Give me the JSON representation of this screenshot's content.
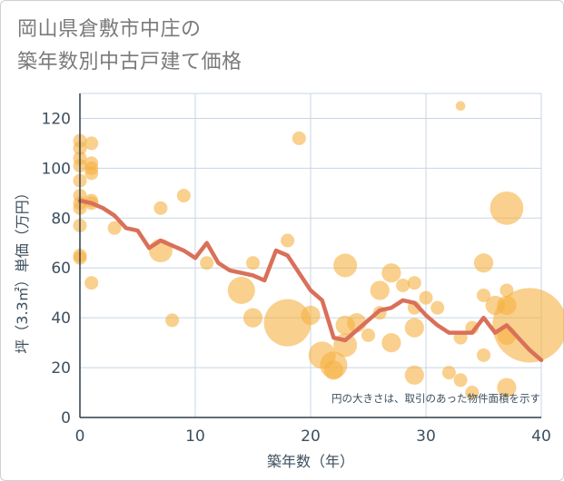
{
  "page": {
    "title_line1": "岡山県倉敷市中庄の",
    "title_line2": "築年数別中古戸建て価格"
  },
  "chart_data": {
    "type": "scatter",
    "title": "岡山県倉敷市中庄の築年数別中古戸建て価格",
    "xlabel": "築年数（年）",
    "ylabel": "坪（3.3㎡）単価（万円）",
    "xlim": [
      0,
      40
    ],
    "ylim": [
      0,
      130
    ],
    "xticks": [
      0,
      10,
      20,
      30,
      40
    ],
    "yticks": [
      0,
      20,
      40,
      60,
      80,
      100,
      120
    ],
    "grid": true,
    "note": "円の大きさは、取引のあった物件面積を示す",
    "colors": {
      "bubble": "#f5b041",
      "trend": "#d9705a",
      "grid": "#c8d6e3",
      "text": "#3d4f5e"
    },
    "bubbles": [
      {
        "x": 0,
        "y": 111,
        "s": 1
      },
      {
        "x": 0,
        "y": 108,
        "s": 1
      },
      {
        "x": 0,
        "y": 104,
        "s": 1
      },
      {
        "x": 0,
        "y": 101,
        "s": 1
      },
      {
        "x": 0,
        "y": 95,
        "s": 1
      },
      {
        "x": 0,
        "y": 89,
        "s": 1
      },
      {
        "x": 0,
        "y": 86,
        "s": 1
      },
      {
        "x": 0,
        "y": 84,
        "s": 1
      },
      {
        "x": 0,
        "y": 77,
        "s": 1
      },
      {
        "x": 0,
        "y": 65,
        "s": 1
      },
      {
        "x": 0,
        "y": 64,
        "s": 1
      },
      {
        "x": 1,
        "y": 110,
        "s": 1
      },
      {
        "x": 1,
        "y": 102,
        "s": 1
      },
      {
        "x": 1,
        "y": 100,
        "s": 1
      },
      {
        "x": 1,
        "y": 98,
        "s": 1
      },
      {
        "x": 1,
        "y": 87,
        "s": 1
      },
      {
        "x": 1,
        "y": 86,
        "s": 1
      },
      {
        "x": 1,
        "y": 54,
        "s": 1
      },
      {
        "x": 3,
        "y": 76,
        "s": 1
      },
      {
        "x": 7,
        "y": 84,
        "s": 1
      },
      {
        "x": 7,
        "y": 67,
        "s": 3
      },
      {
        "x": 8,
        "y": 39,
        "s": 1
      },
      {
        "x": 9,
        "y": 89,
        "s": 1
      },
      {
        "x": 11,
        "y": 62,
        "s": 1
      },
      {
        "x": 14,
        "y": 51,
        "s": 4
      },
      {
        "x": 15,
        "y": 62,
        "s": 1
      },
      {
        "x": 15,
        "y": 40,
        "s": 2
      },
      {
        "x": 18,
        "y": 71,
        "s": 1
      },
      {
        "x": 18,
        "y": 38,
        "s": 12
      },
      {
        "x": 19,
        "y": 112,
        "s": 1
      },
      {
        "x": 20,
        "y": 41,
        "s": 2
      },
      {
        "x": 21,
        "y": 25,
        "s": 4
      },
      {
        "x": 22,
        "y": 21,
        "s": 4
      },
      {
        "x": 22,
        "y": 19,
        "s": 2
      },
      {
        "x": 23,
        "y": 61,
        "s": 3
      },
      {
        "x": 23,
        "y": 37,
        "s": 2
      },
      {
        "x": 23,
        "y": 29,
        "s": 3
      },
      {
        "x": 24,
        "y": 38,
        "s": 2
      },
      {
        "x": 25,
        "y": 33,
        "s": 1
      },
      {
        "x": 26,
        "y": 51,
        "s": 2
      },
      {
        "x": 26,
        "y": 42,
        "s": 1
      },
      {
        "x": 27,
        "y": 58,
        "s": 2
      },
      {
        "x": 27,
        "y": 30,
        "s": 2
      },
      {
        "x": 28,
        "y": 53,
        "s": 1
      },
      {
        "x": 29,
        "y": 54,
        "s": 1
      },
      {
        "x": 29,
        "y": 44,
        "s": 1
      },
      {
        "x": 29,
        "y": 36,
        "s": 2
      },
      {
        "x": 29,
        "y": 17,
        "s": 2
      },
      {
        "x": 30,
        "y": 48,
        "s": 1
      },
      {
        "x": 31,
        "y": 44,
        "s": 1
      },
      {
        "x": 32,
        "y": 18,
        "s": 1
      },
      {
        "x": 33,
        "y": 125,
        "s": 0.5
      },
      {
        "x": 33,
        "y": 32,
        "s": 1
      },
      {
        "x": 33,
        "y": 15,
        "s": 1
      },
      {
        "x": 34,
        "y": 10,
        "s": 1
      },
      {
        "x": 34,
        "y": 36,
        "s": 1
      },
      {
        "x": 35,
        "y": 62,
        "s": 2
      },
      {
        "x": 35,
        "y": 49,
        "s": 1
      },
      {
        "x": 35,
        "y": 25,
        "s": 1
      },
      {
        "x": 36,
        "y": 45,
        "s": 2
      },
      {
        "x": 37,
        "y": 84,
        "s": 6
      },
      {
        "x": 37,
        "y": 51,
        "s": 1
      },
      {
        "x": 37,
        "y": 45,
        "s": 2
      },
      {
        "x": 37,
        "y": 33,
        "s": 2
      },
      {
        "x": 37,
        "y": 12,
        "s": 2
      },
      {
        "x": 39,
        "y": 37,
        "s": 30
      }
    ],
    "trend": {
      "x": [
        0,
        1,
        2,
        3,
        4,
        5,
        6,
        7,
        8,
        9,
        10,
        11,
        12,
        13,
        14,
        15,
        16,
        17,
        18,
        19,
        20,
        21,
        22,
        23,
        24,
        25,
        26,
        27,
        28,
        29,
        30,
        31,
        32,
        33,
        34,
        35,
        36,
        37,
        38,
        39,
        40
      ],
      "y": [
        87,
        86,
        84,
        81,
        76,
        75,
        68,
        71,
        69,
        67,
        64,
        70,
        62,
        59,
        58,
        57,
        55,
        67,
        65,
        58,
        51,
        47,
        32,
        31,
        35,
        39,
        43,
        44,
        47,
        46,
        41,
        37,
        34,
        34,
        34,
        40,
        34,
        37,
        32,
        27,
        23
      ]
    }
  }
}
